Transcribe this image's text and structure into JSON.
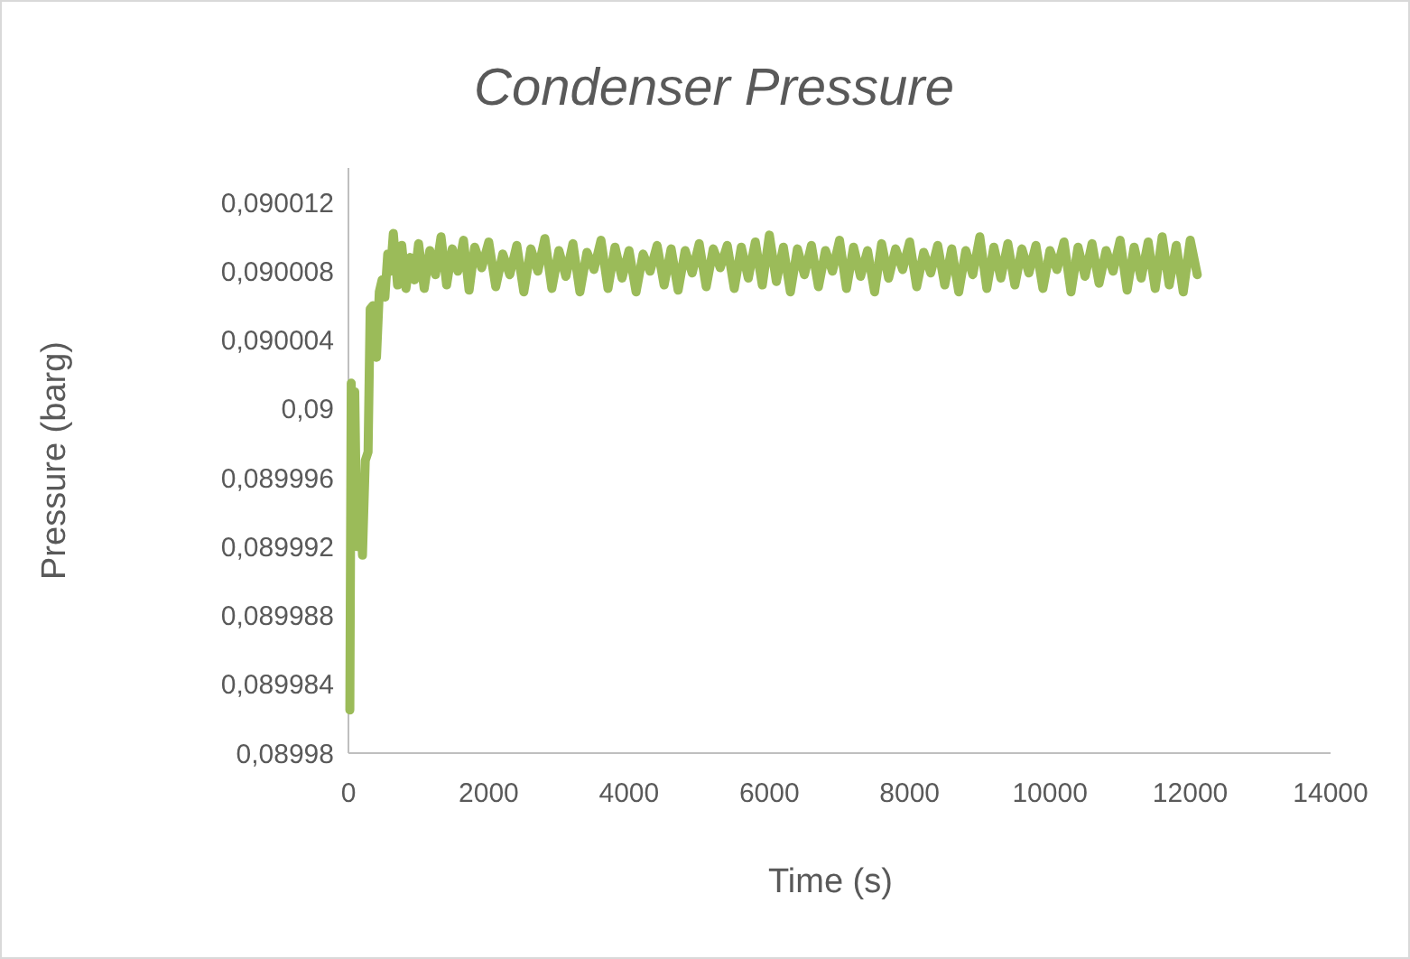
{
  "chart_data": {
    "type": "line",
    "title": "Condenser Pressure",
    "xlabel": "Time (s)",
    "ylabel": "Pressure (barg)",
    "xlim": [
      0,
      14000
    ],
    "xticks": [
      0,
      2000,
      4000,
      6000,
      8000,
      10000,
      12000,
      14000
    ],
    "ylim": [
      0.08998,
      0.090014
    ],
    "yticks": [
      {
        "value": 0.08998,
        "label": "0,08998"
      },
      {
        "value": 0.089984,
        "label": "0,089984"
      },
      {
        "value": 0.089988,
        "label": "0,089988"
      },
      {
        "value": 0.089992,
        "label": "0,089992"
      },
      {
        "value": 0.089996,
        "label": "0,089996"
      },
      {
        "value": 0.09,
        "label": "0,09"
      },
      {
        "value": 0.090004,
        "label": "0,090004"
      },
      {
        "value": 0.090008,
        "label": "0,090008"
      },
      {
        "value": 0.090012,
        "label": "0,090012"
      }
    ],
    "grid": false,
    "line_style": "solid",
    "series": [
      {
        "color": "#9bbb59",
        "x": [
          20,
          40,
          60,
          90,
          120,
          160,
          200,
          240,
          280,
          310,
          350,
          400,
          440,
          480,
          520,
          560,
          600,
          640,
          700,
          760,
          820,
          880,
          940,
          1000,
          1080,
          1160,
          1240,
          1320,
          1400,
          1480,
          1560,
          1640,
          1720,
          1800,
          1900,
          2000,
          2100,
          2200,
          2300,
          2400,
          2500,
          2600,
          2700,
          2800,
          2900,
          3000,
          3100,
          3200,
          3300,
          3400,
          3500,
          3600,
          3700,
          3800,
          3900,
          4000,
          4100,
          4200,
          4300,
          4400,
          4500,
          4600,
          4700,
          4800,
          4900,
          5000,
          5100,
          5200,
          5300,
          5400,
          5500,
          5600,
          5700,
          5800,
          5900,
          6000,
          6100,
          6200,
          6300,
          6400,
          6500,
          6600,
          6700,
          6800,
          6900,
          7000,
          7100,
          7200,
          7300,
          7400,
          7500,
          7600,
          7700,
          7800,
          7900,
          8000,
          8100,
          8200,
          8300,
          8400,
          8500,
          8600,
          8700,
          8800,
          8900,
          9000,
          9100,
          9200,
          9300,
          9400,
          9500,
          9600,
          9700,
          9800,
          9900,
          10000,
          10100,
          10200,
          10300,
          10400,
          10500,
          10600,
          10700,
          10800,
          10900,
          11000,
          11100,
          11200,
          11300,
          11400,
          11500,
          11600,
          11700,
          11800,
          11900,
          12000,
          12100
        ],
        "values": [
          0.0899825,
          0.0900015,
          0.089994,
          0.090001,
          0.089992,
          0.089996,
          0.0899915,
          0.089997,
          0.0899975,
          0.0900058,
          0.090006,
          0.090003,
          0.0900068,
          0.0900075,
          0.0900065,
          0.090009,
          0.090008,
          0.0900102,
          0.0900072,
          0.0900095,
          0.090007,
          0.0900088,
          0.0900075,
          0.0900096,
          0.090007,
          0.0900092,
          0.0900078,
          0.09001,
          0.0900072,
          0.0900093,
          0.090008,
          0.0900098,
          0.0900069,
          0.0900094,
          0.0900082,
          0.0900097,
          0.0900071,
          0.090009,
          0.0900078,
          0.0900095,
          0.0900068,
          0.0900093,
          0.090008,
          0.0900099,
          0.090007,
          0.0900092,
          0.0900077,
          0.0900096,
          0.0900068,
          0.0900091,
          0.0900081,
          0.0900098,
          0.090007,
          0.0900094,
          0.0900076,
          0.0900092,
          0.0900068,
          0.090009,
          0.090008,
          0.0900095,
          0.0900072,
          0.0900093,
          0.0900069,
          0.0900092,
          0.0900079,
          0.0900096,
          0.0900071,
          0.0900093,
          0.0900082,
          0.0900095,
          0.090007,
          0.0900094,
          0.0900076,
          0.0900097,
          0.0900072,
          0.0900101,
          0.0900074,
          0.0900094,
          0.0900068,
          0.0900093,
          0.0900078,
          0.0900095,
          0.0900071,
          0.0900092,
          0.090008,
          0.0900098,
          0.090007,
          0.0900094,
          0.0900077,
          0.0900092,
          0.0900068,
          0.0900096,
          0.0900076,
          0.0900093,
          0.0900081,
          0.0900097,
          0.0900071,
          0.0900091,
          0.0900079,
          0.0900095,
          0.0900072,
          0.0900093,
          0.0900068,
          0.0900092,
          0.0900078,
          0.09001,
          0.090007,
          0.0900094,
          0.0900076,
          0.0900096,
          0.0900072,
          0.0900093,
          0.0900079,
          0.0900095,
          0.090007,
          0.0900092,
          0.0900081,
          0.0900097,
          0.0900068,
          0.0900094,
          0.0900077,
          0.0900096,
          0.0900073,
          0.0900092,
          0.090008,
          0.0900098,
          0.0900069,
          0.0900094,
          0.0900076,
          0.0900097,
          0.090007,
          0.09001,
          0.0900072,
          0.0900095,
          0.0900068,
          0.0900098,
          0.0900078
        ]
      }
    ]
  }
}
